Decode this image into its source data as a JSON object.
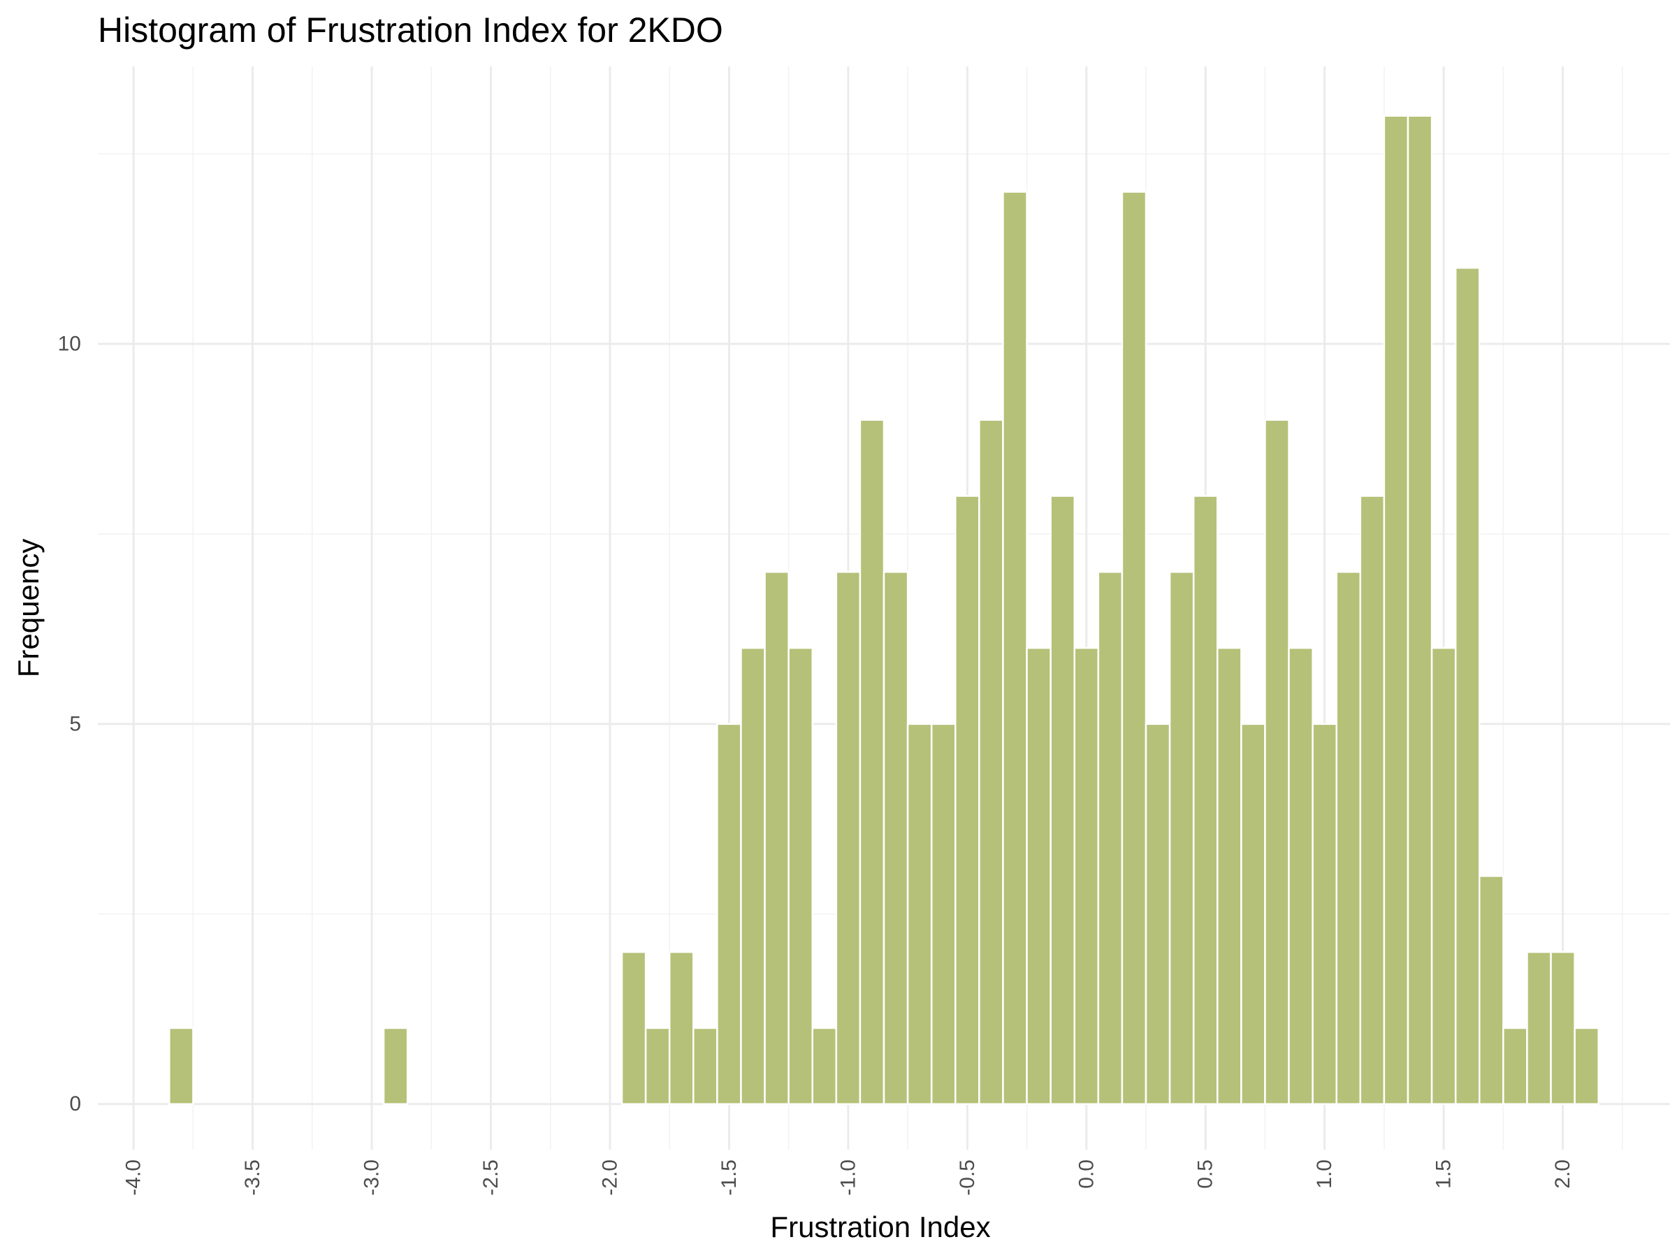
{
  "chart_data": {
    "type": "bar",
    "title": "Histogram of Frustration Index for 2KDO",
    "xlabel": "Frustration Index",
    "ylabel": "Frequency",
    "xlim": [
      -4.15,
      2.45
    ],
    "ylim": [
      -0.6,
      13.65
    ],
    "bin_width": 0.1,
    "bins": [
      {
        "x": -3.8,
        "count": 1
      },
      {
        "x": -2.9,
        "count": 1
      },
      {
        "x": -1.9,
        "count": 2
      },
      {
        "x": -1.8,
        "count": 1
      },
      {
        "x": -1.7,
        "count": 2
      },
      {
        "x": -1.6,
        "count": 1
      },
      {
        "x": -1.5,
        "count": 5
      },
      {
        "x": -1.4,
        "count": 6
      },
      {
        "x": -1.3,
        "count": 7
      },
      {
        "x": -1.2,
        "count": 6
      },
      {
        "x": -1.1,
        "count": 1
      },
      {
        "x": -1.0,
        "count": 7
      },
      {
        "x": -0.9,
        "count": 9
      },
      {
        "x": -0.8,
        "count": 7
      },
      {
        "x": -0.7,
        "count": 5
      },
      {
        "x": -0.6,
        "count": 5
      },
      {
        "x": -0.5,
        "count": 8
      },
      {
        "x": -0.4,
        "count": 9
      },
      {
        "x": -0.3,
        "count": 12
      },
      {
        "x": -0.2,
        "count": 6
      },
      {
        "x": -0.1,
        "count": 8
      },
      {
        "x": 0.0,
        "count": 6
      },
      {
        "x": 0.1,
        "count": 7
      },
      {
        "x": 0.2,
        "count": 12
      },
      {
        "x": 0.3,
        "count": 5
      },
      {
        "x": 0.4,
        "count": 7
      },
      {
        "x": 0.5,
        "count": 8
      },
      {
        "x": 0.6,
        "count": 6
      },
      {
        "x": 0.7,
        "count": 5
      },
      {
        "x": 0.8,
        "count": 9
      },
      {
        "x": 0.9,
        "count": 6
      },
      {
        "x": 1.0,
        "count": 5
      },
      {
        "x": 1.1,
        "count": 7
      },
      {
        "x": 1.2,
        "count": 8
      },
      {
        "x": 1.3,
        "count": 13
      },
      {
        "x": 1.4,
        "count": 13
      },
      {
        "x": 1.5,
        "count": 6
      },
      {
        "x": 1.6,
        "count": 11
      },
      {
        "x": 1.7,
        "count": 3
      },
      {
        "x": 1.8,
        "count": 1
      },
      {
        "x": 1.9,
        "count": 2
      },
      {
        "x": 2.0,
        "count": 2
      },
      {
        "x": 2.1,
        "count": 1
      }
    ],
    "x_ticks": [
      -4.0,
      -3.5,
      -3.0,
      -2.5,
      -2.0,
      -1.5,
      -1.0,
      -0.5,
      0.0,
      0.5,
      1.0,
      1.5,
      2.0
    ],
    "x_tick_labels": [
      "-4.0",
      "-3.5",
      "-3.0",
      "-2.5",
      "-2.0",
      "-1.5",
      "-1.0",
      "-0.5",
      "0.0",
      "0.5",
      "1.0",
      "1.5",
      "2.0"
    ],
    "y_ticks": [
      0,
      5,
      10
    ],
    "y_tick_labels": [
      "0",
      "5",
      "10"
    ],
    "grid": true,
    "legend": "none",
    "bar_color": "#b5c178",
    "bar_border_color": "#ffffff"
  }
}
